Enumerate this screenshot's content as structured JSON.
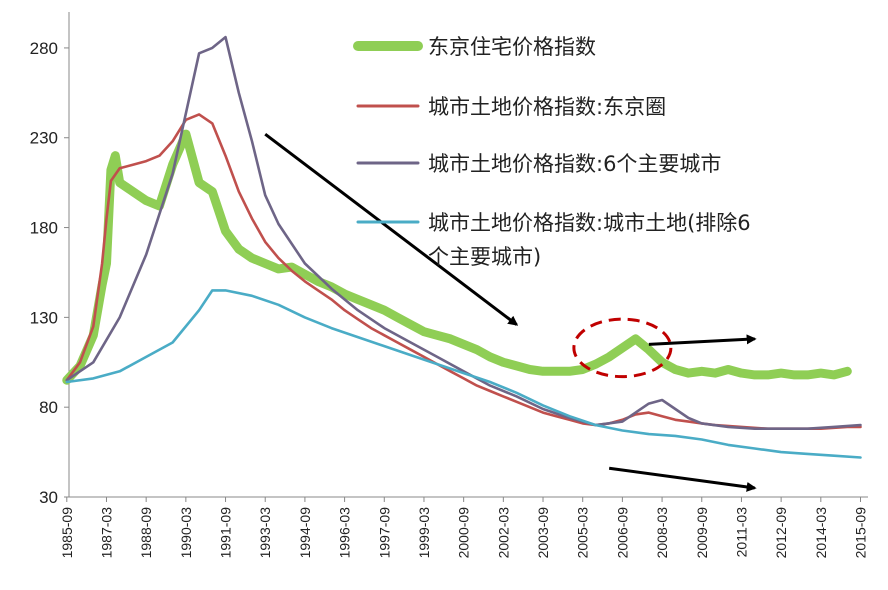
{
  "chart_data": {
    "type": "line",
    "title": "",
    "xlabel": "",
    "ylabel": "",
    "ylim": [
      30,
      300
    ],
    "yticks": [
      30,
      80,
      130,
      180,
      230,
      280
    ],
    "x_tick_labels": [
      "1985-09",
      "1987-03",
      "1988-09",
      "1990-03",
      "1991-09",
      "1993-03",
      "1994-09",
      "1996-03",
      "1997-09",
      "1999-03",
      "2000-09",
      "2002-03",
      "2003-09",
      "2005-03",
      "2006-09",
      "2008-03",
      "2009-09",
      "2011-03",
      "2012-09",
      "2014-03",
      "2015-09"
    ],
    "grid": false,
    "legend_position": "top-right",
    "series": [
      {
        "name": "东京住宅价格指数",
        "color": "#8fce55",
        "points": [
          {
            "x": "1985-09",
            "y": 95
          },
          {
            "x": "1986-03",
            "y": 103
          },
          {
            "x": "1986-09",
            "y": 120
          },
          {
            "x": "1987-01",
            "y": 148
          },
          {
            "x": "1987-03",
            "y": 160
          },
          {
            "x": "1987-05",
            "y": 212
          },
          {
            "x": "1987-07",
            "y": 220
          },
          {
            "x": "1987-09",
            "y": 205
          },
          {
            "x": "1988-03",
            "y": 200
          },
          {
            "x": "1988-09",
            "y": 195
          },
          {
            "x": "1989-03",
            "y": 192
          },
          {
            "x": "1989-09",
            "y": 215
          },
          {
            "x": "1990-03",
            "y": 232
          },
          {
            "x": "1990-09",
            "y": 205
          },
          {
            "x": "1991-03",
            "y": 200
          },
          {
            "x": "1991-09",
            "y": 178
          },
          {
            "x": "1992-03",
            "y": 168
          },
          {
            "x": "1992-09",
            "y": 163
          },
          {
            "x": "1993-03",
            "y": 160
          },
          {
            "x": "1993-09",
            "y": 157
          },
          {
            "x": "1994-03",
            "y": 158
          },
          {
            "x": "1994-09",
            "y": 154
          },
          {
            "x": "1995-03",
            "y": 150
          },
          {
            "x": "1995-09",
            "y": 147
          },
          {
            "x": "1996-03",
            "y": 143
          },
          {
            "x": "1996-09",
            "y": 140
          },
          {
            "x": "1997-03",
            "y": 137
          },
          {
            "x": "1997-09",
            "y": 134
          },
          {
            "x": "1998-03",
            "y": 130
          },
          {
            "x": "1998-09",
            "y": 126
          },
          {
            "x": "1999-03",
            "y": 122
          },
          {
            "x": "1999-09",
            "y": 120
          },
          {
            "x": "2000-03",
            "y": 118
          },
          {
            "x": "2000-09",
            "y": 115
          },
          {
            "x": "2001-03",
            "y": 112
          },
          {
            "x": "2001-09",
            "y": 108
          },
          {
            "x": "2002-03",
            "y": 105
          },
          {
            "x": "2002-09",
            "y": 103
          },
          {
            "x": "2003-03",
            "y": 101
          },
          {
            "x": "2003-09",
            "y": 100
          },
          {
            "x": "2004-03",
            "y": 100
          },
          {
            "x": "2004-09",
            "y": 100
          },
          {
            "x": "2005-03",
            "y": 101
          },
          {
            "x": "2005-09",
            "y": 104
          },
          {
            "x": "2006-03",
            "y": 108
          },
          {
            "x": "2006-09",
            "y": 113
          },
          {
            "x": "2007-03",
            "y": 118
          },
          {
            "x": "2007-09",
            "y": 112
          },
          {
            "x": "2008-03",
            "y": 105
          },
          {
            "x": "2008-09",
            "y": 101
          },
          {
            "x": "2009-03",
            "y": 99
          },
          {
            "x": "2009-09",
            "y": 100
          },
          {
            "x": "2010-03",
            "y": 99
          },
          {
            "x": "2010-09",
            "y": 101
          },
          {
            "x": "2011-03",
            "y": 99
          },
          {
            "x": "2011-09",
            "y": 98
          },
          {
            "x": "2012-03",
            "y": 98
          },
          {
            "x": "2012-09",
            "y": 99
          },
          {
            "x": "2013-03",
            "y": 98
          },
          {
            "x": "2013-09",
            "y": 98
          },
          {
            "x": "2014-03",
            "y": 99
          },
          {
            "x": "2014-09",
            "y": 98
          },
          {
            "x": "2015-03",
            "y": 100
          }
        ]
      },
      {
        "name": "城市土地价格指数:东京圈",
        "color": "#c0504d",
        "points": [
          {
            "x": "1985-09",
            "y": 95
          },
          {
            "x": "1986-03",
            "y": 105
          },
          {
            "x": "1986-09",
            "y": 125
          },
          {
            "x": "1987-01",
            "y": 160
          },
          {
            "x": "1987-03",
            "y": 185
          },
          {
            "x": "1987-05",
            "y": 206
          },
          {
            "x": "1987-09",
            "y": 213
          },
          {
            "x": "1988-03",
            "y": 215
          },
          {
            "x": "1988-09",
            "y": 217
          },
          {
            "x": "1989-03",
            "y": 220
          },
          {
            "x": "1989-09",
            "y": 228
          },
          {
            "x": "1990-03",
            "y": 240
          },
          {
            "x": "1990-09",
            "y": 243
          },
          {
            "x": "1991-03",
            "y": 238
          },
          {
            "x": "1991-09",
            "y": 220
          },
          {
            "x": "1992-03",
            "y": 200
          },
          {
            "x": "1992-09",
            "y": 185
          },
          {
            "x": "1993-03",
            "y": 172
          },
          {
            "x": "1993-09",
            "y": 163
          },
          {
            "x": "1994-03",
            "y": 156
          },
          {
            "x": "1994-09",
            "y": 150
          },
          {
            "x": "1995-03",
            "y": 145
          },
          {
            "x": "1995-09",
            "y": 140
          },
          {
            "x": "1996-03",
            "y": 134
          },
          {
            "x": "1996-09",
            "y": 129
          },
          {
            "x": "1997-03",
            "y": 124
          },
          {
            "x": "1997-09",
            "y": 120
          },
          {
            "x": "1998-03",
            "y": 116
          },
          {
            "x": "1998-09",
            "y": 112
          },
          {
            "x": "1999-03",
            "y": 108
          },
          {
            "x": "1999-09",
            "y": 104
          },
          {
            "x": "2000-03",
            "y": 100
          },
          {
            "x": "2000-09",
            "y": 96
          },
          {
            "x": "2001-03",
            "y": 92
          },
          {
            "x": "2001-09",
            "y": 89
          },
          {
            "x": "2002-03",
            "y": 86
          },
          {
            "x": "2002-09",
            "y": 83
          },
          {
            "x": "2003-03",
            "y": 80
          },
          {
            "x": "2003-09",
            "y": 77
          },
          {
            "x": "2004-03",
            "y": 75
          },
          {
            "x": "2004-09",
            "y": 73
          },
          {
            "x": "2005-03",
            "y": 71
          },
          {
            "x": "2005-09",
            "y": 70
          },
          {
            "x": "2006-03",
            "y": 71
          },
          {
            "x": "2006-09",
            "y": 73
          },
          {
            "x": "2007-03",
            "y": 76
          },
          {
            "x": "2007-09",
            "y": 77
          },
          {
            "x": "2008-03",
            "y": 75
          },
          {
            "x": "2008-09",
            "y": 73
          },
          {
            "x": "2009-03",
            "y": 72
          },
          {
            "x": "2009-09",
            "y": 71
          },
          {
            "x": "2010-03",
            "y": 70
          },
          {
            "x": "2011-03",
            "y": 69
          },
          {
            "x": "2012-03",
            "y": 68
          },
          {
            "x": "2013-03",
            "y": 68
          },
          {
            "x": "2014-03",
            "y": 68
          },
          {
            "x": "2015-03",
            "y": 69
          },
          {
            "x": "2015-09",
            "y": 69
          }
        ]
      },
      {
        "name": "城市土地价格指数:6个主要城市",
        "color": "#6e6587",
        "points": [
          {
            "x": "1985-09",
            "y": 95
          },
          {
            "x": "1986-09",
            "y": 105
          },
          {
            "x": "1987-09",
            "y": 130
          },
          {
            "x": "1988-09",
            "y": 165
          },
          {
            "x": "1989-09",
            "y": 210
          },
          {
            "x": "1990-09",
            "y": 277
          },
          {
            "x": "1991-03",
            "y": 280
          },
          {
            "x": "1991-09",
            "y": 286
          },
          {
            "x": "1992-03",
            "y": 255
          },
          {
            "x": "1992-09",
            "y": 228
          },
          {
            "x": "1993-03",
            "y": 198
          },
          {
            "x": "1993-09",
            "y": 182
          },
          {
            "x": "1994-09",
            "y": 160
          },
          {
            "x": "1995-09",
            "y": 146
          },
          {
            "x": "1996-09",
            "y": 134
          },
          {
            "x": "1997-09",
            "y": 124
          },
          {
            "x": "1998-09",
            "y": 116
          },
          {
            "x": "1999-09",
            "y": 108
          },
          {
            "x": "2000-09",
            "y": 100
          },
          {
            "x": "2001-09",
            "y": 92
          },
          {
            "x": "2002-09",
            "y": 86
          },
          {
            "x": "2003-09",
            "y": 79
          },
          {
            "x": "2004-09",
            "y": 74
          },
          {
            "x": "2005-09",
            "y": 70
          },
          {
            "x": "2006-09",
            "y": 72
          },
          {
            "x": "2007-03",
            "y": 77
          },
          {
            "x": "2007-09",
            "y": 82
          },
          {
            "x": "2008-03",
            "y": 84
          },
          {
            "x": "2008-09",
            "y": 79
          },
          {
            "x": "2009-03",
            "y": 74
          },
          {
            "x": "2009-09",
            "y": 71
          },
          {
            "x": "2010-09",
            "y": 69
          },
          {
            "x": "2011-09",
            "y": 68
          },
          {
            "x": "2012-09",
            "y": 68
          },
          {
            "x": "2013-09",
            "y": 68
          },
          {
            "x": "2014-09",
            "y": 69
          },
          {
            "x": "2015-09",
            "y": 70
          }
        ]
      },
      {
        "name": "城市土地价格指数:城市土地(排除6个主要城市)",
        "color": "#4aacc6",
        "points": [
          {
            "x": "1985-09",
            "y": 94
          },
          {
            "x": "1986-09",
            "y": 96
          },
          {
            "x": "1987-09",
            "y": 100
          },
          {
            "x": "1988-09",
            "y": 108
          },
          {
            "x": "1989-09",
            "y": 116
          },
          {
            "x": "1990-09",
            "y": 134
          },
          {
            "x": "1991-03",
            "y": 145
          },
          {
            "x": "1991-09",
            "y": 145
          },
          {
            "x": "1992-09",
            "y": 142
          },
          {
            "x": "1993-09",
            "y": 137
          },
          {
            "x": "1994-09",
            "y": 130
          },
          {
            "x": "1995-09",
            "y": 124
          },
          {
            "x": "1996-09",
            "y": 119
          },
          {
            "x": "1997-09",
            "y": 114
          },
          {
            "x": "1998-09",
            "y": 109
          },
          {
            "x": "1999-09",
            "y": 104
          },
          {
            "x": "2000-09",
            "y": 99
          },
          {
            "x": "2001-09",
            "y": 94
          },
          {
            "x": "2002-09",
            "y": 88
          },
          {
            "x": "2003-09",
            "y": 81
          },
          {
            "x": "2004-09",
            "y": 75
          },
          {
            "x": "2005-09",
            "y": 70
          },
          {
            "x": "2006-09",
            "y": 67
          },
          {
            "x": "2007-09",
            "y": 65
          },
          {
            "x": "2008-09",
            "y": 64
          },
          {
            "x": "2009-09",
            "y": 62
          },
          {
            "x": "2010-09",
            "y": 59
          },
          {
            "x": "2011-09",
            "y": 57
          },
          {
            "x": "2012-09",
            "y": 55
          },
          {
            "x": "2013-09",
            "y": 54
          },
          {
            "x": "2014-09",
            "y": 53
          },
          {
            "x": "2015-09",
            "y": 52
          }
        ]
      }
    ],
    "legend": [
      {
        "lines": [
          "东京住宅价格指数"
        ]
      },
      {
        "lines": [
          "城市土地价格指数:东京圈"
        ]
      },
      {
        "lines": [
          "城市土地价格指数:6个主要城市"
        ]
      },
      {
        "lines": [
          "城市土地价格指数:城市土地(排除6",
          "个主要城市)"
        ]
      }
    ],
    "annotations": [
      {
        "type": "arrow",
        "from": {
          "x": "1993-03",
          "y": 232
        },
        "to": {
          "x": "2002-09",
          "y": 126
        },
        "color": "#000000"
      },
      {
        "type": "arrow",
        "from": {
          "x": "2007-09",
          "y": 115
        },
        "to": {
          "x": "2011-09",
          "y": 118
        },
        "color": "#000000"
      },
      {
        "type": "arrow",
        "from": {
          "x": "2006-03",
          "y": 46
        },
        "to": {
          "x": "2011-09",
          "y": 35
        },
        "color": "#000000"
      },
      {
        "type": "dashed-ellipse",
        "center": {
          "x": "2006-09",
          "y": 113
        },
        "rx_months": 22,
        "ry": 16,
        "color": "#c00000"
      }
    ]
  }
}
